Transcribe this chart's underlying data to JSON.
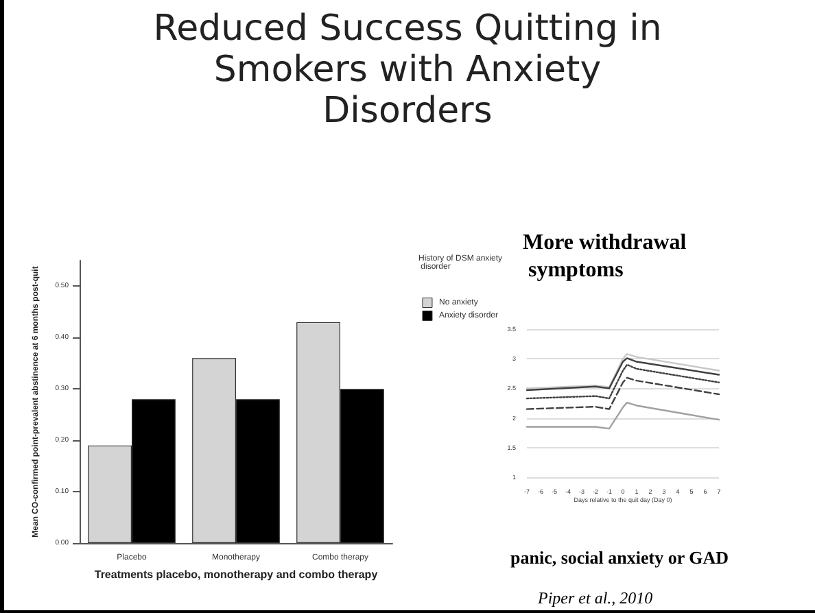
{
  "chart_data": [
    {
      "type": "bar",
      "title": "Reduced Success Quitting in Smokers with Anxiety Disorders",
      "xlabel": "Treatments placebo, monotherapy and combo therapy",
      "ylabel": "Mean CO-confirmed point-prevalent abstinence at 6 months post-quit",
      "legend_title": "History of DSM anxiety disorder",
      "categories": [
        "Placebo",
        "Monotherapy",
        "Combo therapy"
      ],
      "series": [
        {
          "name": "No anxiety",
          "color": "#d4d4d4",
          "values": [
            0.19,
            0.36,
            0.43
          ]
        },
        {
          "name": "Anxiety disorder",
          "color": "#000000",
          "values": [
            0.28,
            0.28,
            0.3
          ]
        }
      ],
      "ylim": [
        0,
        0.55
      ],
      "yticks": [
        {
          "value": 0,
          "label": "0.00"
        },
        {
          "value": 0.1,
          "label": "0.10"
        },
        {
          "value": 0.2,
          "label": "0.20"
        },
        {
          "value": 0.3,
          "label": "0.30"
        },
        {
          "value": 0.4,
          "label": "0.40"
        },
        {
          "value": 0.5,
          "label": "0.50"
        }
      ],
      "grid": false,
      "legend": "right"
    },
    {
      "type": "line",
      "title": "More withdrawal symptoms",
      "xlabel": "Days relative to the quit day (Day 0)",
      "annotations": [
        "panic, social anxiety or GAD",
        "Piper et al., 2010"
      ],
      "x": [
        -7,
        -2,
        -1,
        0,
        0.3,
        1,
        7
      ],
      "series": [
        {
          "color": "#c8c8c8",
          "line_style": "solid",
          "values": [
            2.5,
            2.55,
            2.52,
            3.0,
            3.08,
            3.03,
            2.8
          ]
        },
        {
          "color": "#404040",
          "line_style": "solid",
          "values": [
            2.47,
            2.53,
            2.5,
            2.95,
            3.01,
            2.95,
            2.73
          ]
        },
        {
          "color": "#404040",
          "line_style": "dotted",
          "values": [
            2.33,
            2.37,
            2.33,
            2.8,
            2.9,
            2.83,
            2.6
          ]
        },
        {
          "color": "#404040",
          "line_style": "dashed",
          "values": [
            2.15,
            2.19,
            2.15,
            2.6,
            2.68,
            2.63,
            2.4
          ]
        },
        {
          "color": "#a0a0a0",
          "line_style": "solid",
          "values": [
            1.85,
            1.85,
            1.82,
            2.18,
            2.26,
            2.21,
            1.97
          ]
        }
      ],
      "xlim": [
        -7,
        7
      ],
      "xticks": [
        -7,
        -6,
        -5,
        -4,
        -3,
        -2,
        -1,
        0,
        1,
        2,
        3,
        4,
        5,
        6,
        7
      ],
      "ylim": [
        1,
        3.5
      ],
      "yticks": [
        1,
        1.5,
        2,
        2.5,
        3,
        3.5
      ],
      "grid": "y",
      "legend": false
    }
  ]
}
